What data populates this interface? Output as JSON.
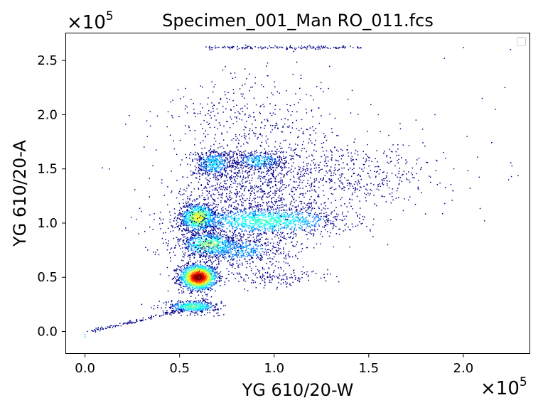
{
  "chart_data": {
    "type": "scatter",
    "title": "Specimen_001_Man RO_011.fcs",
    "xlabel": "YG 610/20-W",
    "ylabel": "YG 610/20-A",
    "x_multiplier": "×10",
    "x_multiplier_exp": "5",
    "y_multiplier": "×10",
    "y_multiplier_exp": "5",
    "xlim": [
      -0.1,
      2.35
    ],
    "ylim": [
      -0.2,
      2.75
    ],
    "xticks": [
      0.0,
      0.5,
      1.0,
      1.5,
      2.0
    ],
    "xtick_labels": [
      "0.0",
      "0.5",
      "1.0",
      "1.5",
      "2.0"
    ],
    "yticks": [
      0.0,
      0.5,
      1.0,
      1.5,
      2.0,
      2.5
    ],
    "ytick_labels": [
      "0.0",
      "0.5",
      "1.0",
      "1.5",
      "2.0",
      "2.5"
    ],
    "grid": false,
    "legend": "top-right, empty",
    "colormap": "jet (density)",
    "colors": {
      "low_density": "#00008b",
      "mid_density": "#00bfff",
      "high_density": "#ff0000"
    },
    "populations": [
      {
        "x": 0.6,
        "y": 0.5,
        "sx": 0.05,
        "sy": 0.06,
        "weight": 1400,
        "density": 1.0
      },
      {
        "x": 0.6,
        "y": 1.05,
        "sx": 0.05,
        "sy": 0.07,
        "weight": 900,
        "density": 0.55
      },
      {
        "x": 0.95,
        "y": 1.02,
        "sx": 0.22,
        "sy": 0.07,
        "weight": 1300,
        "density": 0.35
      },
      {
        "x": 0.66,
        "y": 0.8,
        "sx": 0.08,
        "sy": 0.06,
        "weight": 600,
        "density": 0.45
      },
      {
        "x": 0.57,
        "y": 0.23,
        "sx": 0.07,
        "sy": 0.03,
        "weight": 450,
        "density": 0.4
      },
      {
        "x": 0.8,
        "y": 0.75,
        "sx": 0.15,
        "sy": 0.08,
        "weight": 600,
        "density": 0.2
      },
      {
        "x": 0.68,
        "y": 1.55,
        "sx": 0.06,
        "sy": 0.07,
        "weight": 450,
        "density": 0.25
      },
      {
        "x": 0.92,
        "y": 1.57,
        "sx": 0.08,
        "sy": 0.05,
        "weight": 350,
        "density": 0.25
      },
      {
        "x": 1.3,
        "y": 1.45,
        "sx": 0.3,
        "sy": 0.15,
        "weight": 700,
        "density": 0.08
      },
      {
        "x": 0.85,
        "y": 1.3,
        "sx": 0.18,
        "sy": 0.12,
        "weight": 500,
        "density": 0.1
      },
      {
        "x": 0.9,
        "y": 1.9,
        "sx": 0.25,
        "sy": 0.25,
        "weight": 450,
        "density": 0.05
      },
      {
        "x": 1.0,
        "y": 0.5,
        "sx": 0.15,
        "sy": 0.05,
        "weight": 150,
        "density": 0.05
      }
    ],
    "trails": [
      {
        "from": [
          0.02,
          0.0
        ],
        "to": [
          0.52,
          0.2
        ],
        "count": 120
      },
      {
        "from": [
          0.65,
          2.62
        ],
        "to": [
          1.45,
          2.62
        ],
        "count": 150
      }
    ],
    "outliers": [
      [
        0.0,
        -0.03
      ],
      [
        0.0,
        -0.05
      ],
      [
        2.25,
        2.6
      ],
      [
        2.22,
        2.25
      ],
      [
        2.1,
        2.15
      ],
      [
        1.9,
        2.52
      ],
      [
        1.95,
        1.5
      ],
      [
        1.75,
        1.95
      ],
      [
        1.85,
        2.0
      ],
      [
        2.17,
        2.05
      ],
      [
        1.6,
        0.8
      ],
      [
        1.4,
        0.78
      ],
      [
        1.2,
        0.55
      ],
      [
        0.3,
        0.25
      ],
      [
        0.35,
        0.22
      ],
      [
        2.02,
        1.8
      ],
      [
        1.55,
        2.0
      ],
      [
        2.0,
        2.62
      ]
    ]
  }
}
